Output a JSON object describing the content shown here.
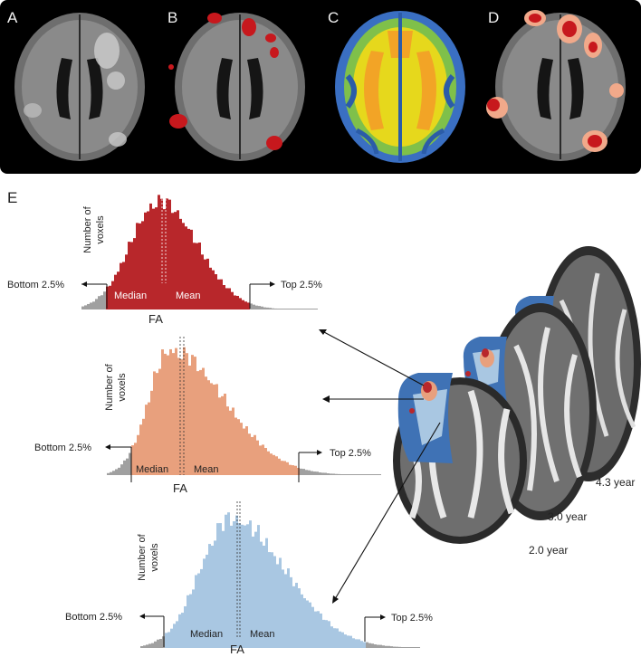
{
  "top_panels": [
    {
      "letter": "A",
      "kind": "flair"
    },
    {
      "letter": "B",
      "kind": "flair-lesions"
    },
    {
      "letter": "C",
      "kind": "fa-map"
    },
    {
      "letter": "D",
      "kind": "flair-lesions-perilesional"
    }
  ],
  "panel_e_letter": "E",
  "histograms": [
    {
      "name": "lesion",
      "color": "#b8272b",
      "ylabel_line1": "Number of",
      "ylabel_line2": "voxels",
      "xlabel": "FA",
      "median_label": "Median",
      "mean_label": "Mean",
      "bottom_label": "Bottom 2.5%",
      "top_label": "Top 2.5%"
    },
    {
      "name": "perilesional",
      "color": "#e8a07d",
      "ylabel_line1": "Number of",
      "ylabel_line2": "voxels",
      "xlabel": "FA",
      "median_label": "Median",
      "mean_label": "Mean",
      "bottom_label": "Bottom 2.5%",
      "top_label": "Top 2.5%"
    },
    {
      "name": "normal-appearing",
      "color": "#a9c7e2",
      "ylabel_line1": "Number of",
      "ylabel_line2": "voxels",
      "xlabel": "FA",
      "median_label": "Median",
      "mean_label": "Mean",
      "bottom_label": "Bottom 2.5%",
      "top_label": "Top 2.5%"
    }
  ],
  "timepoints": [
    "4.3 year",
    "3.0 year",
    "2.0 year"
  ],
  "colors": {
    "lesion": "#b8272b",
    "perilesional": "#e8a07d",
    "normal_appearing": "#a9c7e2",
    "tail_gray": "#a0a0a0",
    "roi_blue": "#3f72b5"
  }
}
